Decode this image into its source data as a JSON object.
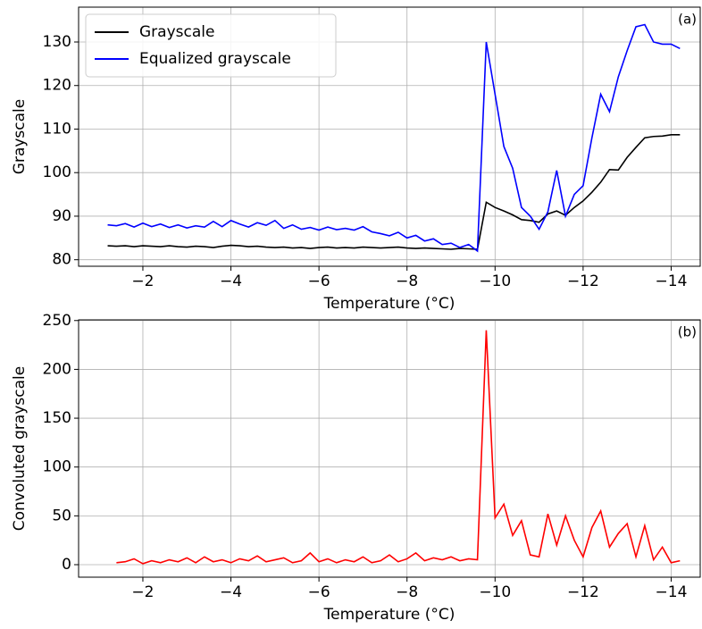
{
  "chart_data": [
    {
      "type": "line",
      "annotation": "(a)",
      "xlabel": "Temperature (°C)",
      "ylabel": "Grayscale",
      "x": [
        -1.2,
        -1.4,
        -1.6,
        -1.8,
        -2.0,
        -2.2,
        -2.4,
        -2.6,
        -2.8,
        -3.0,
        -3.2,
        -3.4,
        -3.6,
        -3.8,
        -4.0,
        -4.2,
        -4.4,
        -4.6,
        -4.8,
        -5.0,
        -5.2,
        -5.4,
        -5.6,
        -5.8,
        -6.0,
        -6.2,
        -6.4,
        -6.6,
        -6.8,
        -7.0,
        -7.2,
        -7.4,
        -7.6,
        -7.8,
        -8.0,
        -8.2,
        -8.4,
        -8.6,
        -8.8,
        -9.0,
        -9.2,
        -9.4,
        -9.6,
        -9.8,
        -10.0,
        -10.2,
        -10.4,
        -10.6,
        -10.8,
        -11.0,
        -11.2,
        -11.4,
        -11.6,
        -11.8,
        -12.0,
        -12.2,
        -12.4,
        -12.6,
        -12.8,
        -13.0,
        -13.2,
        -13.4,
        -13.6,
        -13.8,
        -14.0,
        -14.2
      ],
      "series": [
        {
          "name": "Grayscale",
          "color": "#000000",
          "values": [
            83.2,
            83.1,
            83.2,
            83.0,
            83.2,
            83.1,
            83.0,
            83.2,
            83.0,
            82.9,
            83.1,
            83.0,
            82.8,
            83.1,
            83.3,
            83.2,
            83.0,
            83.1,
            82.9,
            82.8,
            82.9,
            82.7,
            82.8,
            82.6,
            82.8,
            82.9,
            82.7,
            82.8,
            82.7,
            82.9,
            82.8,
            82.7,
            82.8,
            82.9,
            82.7,
            82.6,
            82.7,
            82.6,
            82.5,
            82.4,
            82.6,
            82.5,
            82.4,
            93.2,
            92.0,
            91.2,
            90.3,
            89.2,
            89.0,
            88.6,
            90.5,
            91.2,
            90.2,
            92.0,
            93.5,
            95.5,
            97.8,
            100.7,
            100.6,
            103.5,
            105.8,
            108.0,
            108.3,
            108.4,
            108.7,
            108.7
          ]
        },
        {
          "name": "Equalized grayscale",
          "color": "#0000ff",
          "values": [
            88.0,
            87.8,
            88.3,
            87.5,
            88.4,
            87.6,
            88.2,
            87.4,
            88.0,
            87.3,
            87.8,
            87.5,
            88.8,
            87.6,
            89.0,
            88.2,
            87.5,
            88.5,
            87.9,
            89.0,
            87.2,
            88.0,
            87.0,
            87.4,
            86.8,
            87.5,
            86.9,
            87.2,
            86.8,
            87.6,
            86.4,
            86.0,
            85.5,
            86.3,
            85.0,
            85.6,
            84.3,
            84.8,
            83.5,
            83.8,
            82.8,
            83.5,
            82.0,
            130,
            118,
            106,
            101,
            92,
            90,
            87,
            91,
            100.5,
            90,
            95,
            97,
            108,
            118,
            114,
            122,
            128,
            133.5,
            134,
            130,
            129.5,
            129.5,
            128.5
          ]
        }
      ],
      "xlim": [
        -0.54,
        -14.66
      ],
      "ylim": [
        78.5,
        138
      ],
      "xticks": [
        {
          "value": -2,
          "label": "−2"
        },
        {
          "value": -4,
          "label": "−4"
        },
        {
          "value": -6,
          "label": "−6"
        },
        {
          "value": -8,
          "label": "−8"
        },
        {
          "value": -10,
          "label": "−10"
        },
        {
          "value": -12,
          "label": "−12"
        },
        {
          "value": -14,
          "label": "−14"
        }
      ],
      "yticks": [
        80,
        90,
        100,
        110,
        120,
        130
      ],
      "grid": true,
      "legend": "upper-left"
    },
    {
      "type": "line",
      "annotation": "(b)",
      "xlabel": "Temperature (°C)",
      "ylabel": "Convoluted grayscale",
      "x": [
        -1.4,
        -1.6,
        -1.8,
        -2.0,
        -2.2,
        -2.4,
        -2.6,
        -2.8,
        -3.0,
        -3.2,
        -3.4,
        -3.6,
        -3.8,
        -4.0,
        -4.2,
        -4.4,
        -4.6,
        -4.8,
        -5.0,
        -5.2,
        -5.4,
        -5.6,
        -5.8,
        -6.0,
        -6.2,
        -6.4,
        -6.6,
        -6.8,
        -7.0,
        -7.2,
        -7.4,
        -7.6,
        -7.8,
        -8.0,
        -8.2,
        -8.4,
        -8.6,
        -8.8,
        -9.0,
        -9.2,
        -9.4,
        -9.6,
        -9.8,
        -10.0,
        -10.2,
        -10.4,
        -10.6,
        -10.8,
        -11.0,
        -11.2,
        -11.4,
        -11.6,
        -11.8,
        -12.0,
        -12.2,
        -12.4,
        -12.6,
        -12.8,
        -13.0,
        -13.2,
        -13.4,
        -13.6,
        -13.8,
        -14.0,
        -14.2
      ],
      "series": [
        {
          "color": "#ff0000",
          "values": [
            2,
            3,
            6,
            1,
            4,
            2,
            5,
            3,
            7,
            2,
            8,
            3,
            5,
            2,
            6,
            4,
            9,
            3,
            5,
            7,
            2,
            4,
            12,
            3,
            6,
            2,
            5,
            3,
            8,
            2,
            4,
            10,
            3,
            6,
            12,
            4,
            7,
            5,
            8,
            4,
            6,
            5,
            240,
            48,
            62,
            30,
            45,
            10,
            8,
            52,
            20,
            50,
            25,
            8,
            38,
            55,
            18,
            32,
            42,
            8,
            40,
            5,
            18,
            2,
            4
          ]
        }
      ],
      "xlim": [
        -0.54,
        -14.66
      ],
      "ylim": [
        -12.8,
        250.7
      ],
      "xticks": [
        {
          "value": -2,
          "label": "−2"
        },
        {
          "value": -4,
          "label": "−4"
        },
        {
          "value": -6,
          "label": "−6"
        },
        {
          "value": -8,
          "label": "−8"
        },
        {
          "value": -10,
          "label": "−10"
        },
        {
          "value": -12,
          "label": "−12"
        },
        {
          "value": -14,
          "label": "−14"
        }
      ],
      "yticks": [
        0,
        50,
        100,
        150,
        200,
        250
      ],
      "grid": true
    }
  ]
}
